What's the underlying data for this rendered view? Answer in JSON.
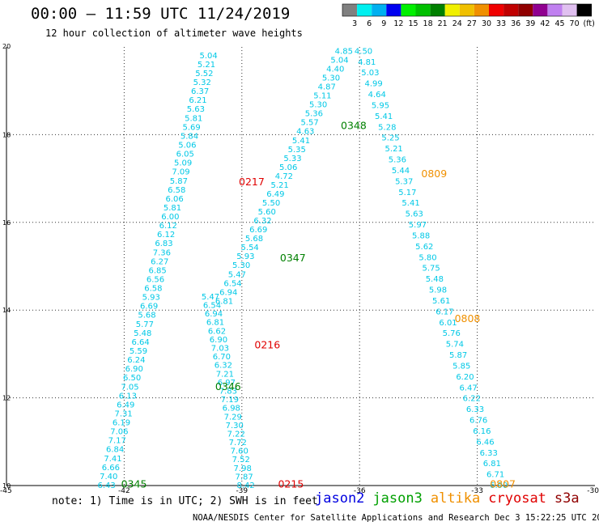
{
  "header": {
    "title": "00:00 – 11:59 UTC 11/24/2019",
    "subtitle": "12 hour collection of altimeter wave heights"
  },
  "colorbar": {
    "labels": [
      "3",
      "6",
      "9",
      "12",
      "15",
      "18",
      "21",
      "24",
      "27",
      "30",
      "33",
      "36",
      "39",
      "42",
      "45",
      "70",
      "(ft)"
    ],
    "colors": [
      "#808080",
      "#00f0f0",
      "#00b0f0",
      "#0000f0",
      "#00f000",
      "#00c000",
      "#008000",
      "#f0f000",
      "#f0c000",
      "#f09000",
      "#f00000",
      "#c00000",
      "#900000",
      "#900090",
      "#c080f0",
      "#e0c0f0",
      "#000000"
    ]
  },
  "chart_data": {
    "type": "scatter",
    "xlim": [
      -45,
      -30
    ],
    "ylim": [
      10,
      20
    ],
    "x_ticks": [
      "-45",
      "-42",
      "-39",
      "-36",
      "-33",
      "-30"
    ],
    "y_ticks": [
      "10",
      "12",
      "14",
      "16",
      "18",
      "20"
    ],
    "grid": true,
    "tracks": [
      {
        "x0": -42.45,
        "y0": 10.0,
        "x1": -39.85,
        "y1": 19.8,
        "labels": [
          "6.43",
          "7.40",
          "6.66",
          "7.41",
          "6.84",
          "7.17",
          "7.06",
          "6.19",
          "7.31",
          "6.49",
          "6.13",
          "7.05",
          "6.50",
          "6.90",
          "6.24",
          "5.59",
          "6.64",
          "5.48",
          "5.77",
          "5.68",
          "6.69",
          "5.93",
          "6.58",
          "6.56",
          "6.85",
          "6.27",
          "7.36",
          "6.83",
          "6.12",
          "6.12",
          "6.00",
          "5.81",
          "6.06",
          "6.58",
          "5.87",
          "7.09",
          "5.09",
          "6.05",
          "5.06",
          "5.84",
          "5.69",
          "5.81",
          "5.63",
          "6.21",
          "6.37",
          "5.32",
          "5.52",
          "5.21",
          "5.04"
        ]
      },
      {
        "x0": -38.9,
        "y0": 10.0,
        "x1": -39.8,
        "y1": 14.3,
        "labels": [
          "8.42",
          "7.87",
          "7.98",
          "7.52",
          "7.60",
          "7.72",
          "7.22",
          "7.30",
          "7.29",
          "6.98",
          "7.19",
          "7.83",
          "6.97",
          "7.21",
          "6.32",
          "6.70",
          "7.03",
          "6.90",
          "6.62",
          "6.81",
          "6.94",
          "6.54",
          "5.47"
        ]
      },
      {
        "x0": -39.45,
        "y0": 14.2,
        "x1": -36.4,
        "y1": 19.9,
        "labels": [
          "6.81",
          "6.94",
          "6.54",
          "5.47",
          "5.30",
          "5.93",
          "5.54",
          "5.68",
          "6.69",
          "6.32",
          "5.60",
          "5.50",
          "6.49",
          "5.21",
          "4.72",
          "5.06",
          "5.33",
          "5.35",
          "5.41",
          "4.63",
          "5.57",
          "5.36",
          "5.30",
          "5.11",
          "4.87",
          "5.30",
          "4.40",
          "5.04",
          "4.85"
        ]
      },
      {
        "x0": -35.9,
        "y0": 19.9,
        "x1": -32.45,
        "y1": 10.0,
        "labels": [
          "4.50",
          "4.81",
          "5.03",
          "4.99",
          "4.64",
          "5.95",
          "5.41",
          "5.28",
          "5.25",
          "5.21",
          "5.36",
          "5.44",
          "5.37",
          "5.17",
          "5.41",
          "5.63",
          "5.97",
          "5.88",
          "5.62",
          "5.80",
          "5.75",
          "5.48",
          "5.98",
          "5.61",
          "6.17",
          "6.01",
          "5.76",
          "5.74",
          "5.87",
          "5.85",
          "6.20",
          "6.47",
          "6.22",
          "6.33",
          "6.76",
          "6.16",
          "6.46",
          "6.33",
          "6.81",
          "6.71",
          "6.90"
        ]
      }
    ],
    "pass_labels": [
      {
        "text": "0345",
        "x": -41.75,
        "y": 10.03,
        "color": "#008000"
      },
      {
        "text": "0346",
        "x": -39.35,
        "y": 12.25,
        "color": "#008000"
      },
      {
        "text": "0347",
        "x": -37.7,
        "y": 15.18,
        "color": "#008000"
      },
      {
        "text": "0348",
        "x": -36.15,
        "y": 18.2,
        "color": "#008000"
      },
      {
        "text": "0215",
        "x": -37.75,
        "y": 10.03,
        "color": "#e00000"
      },
      {
        "text": "0216",
        "x": -38.35,
        "y": 13.2,
        "color": "#e00000"
      },
      {
        "text": "0217",
        "x": -38.75,
        "y": 16.92,
        "color": "#e00000"
      },
      {
        "text": "0807",
        "x": -32.35,
        "y": 10.03,
        "color": "#f09000"
      },
      {
        "text": "0808",
        "x": -33.25,
        "y": 13.8,
        "color": "#f09000"
      },
      {
        "text": "0809",
        "x": -34.1,
        "y": 17.1,
        "color": "#f09000"
      }
    ]
  },
  "note": "note: 1) Time is in UTC; 2) SWH is in feet",
  "legend": [
    {
      "label": "jason2",
      "color": "#0000e0"
    },
    {
      "label": "jason3",
      "color": "#00a000"
    },
    {
      "label": "altika",
      "color": "#f09000"
    },
    {
      "label": "cryosat",
      "color": "#e00000"
    },
    {
      "label": "s3a",
      "color": "#900000"
    }
  ],
  "footer": "NOAA/NESDIS Center for Satellite Applications and Research   Dec  3 15:22:25 UTC 2019"
}
